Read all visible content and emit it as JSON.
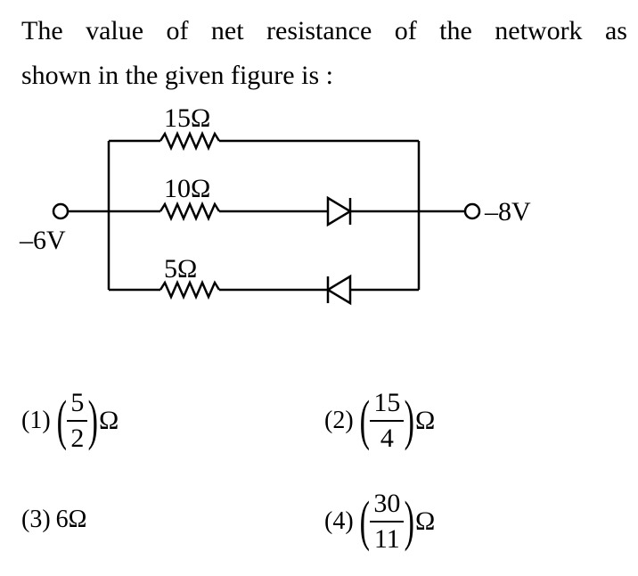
{
  "question": {
    "line1": "The value of net resistance of the network as",
    "line2": "shown in the given figure is :"
  },
  "circuit": {
    "resistor_top": "15Ω",
    "resistor_middle": "10Ω",
    "resistor_bottom": "5Ω",
    "left_terminal": "–6V",
    "right_terminal": "–8V"
  },
  "options": [
    {
      "label": "(1)",
      "numerator": "5",
      "denominator": "2",
      "unit": "Ω"
    },
    {
      "label": "(2)",
      "numerator": "15",
      "denominator": "4",
      "unit": "Ω"
    },
    {
      "label": "(3)",
      "text": "6Ω"
    },
    {
      "label": "(4)",
      "numerator": "30",
      "denominator": "11",
      "unit": "Ω"
    }
  ]
}
